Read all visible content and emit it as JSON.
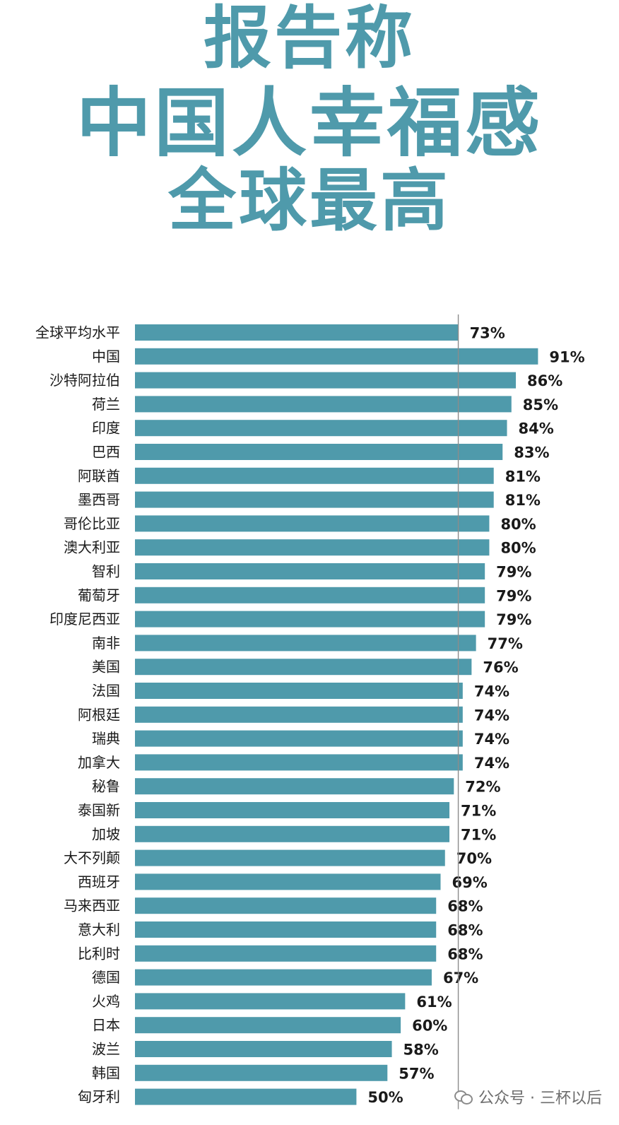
{
  "title_lines": [
    "报告称",
    "中国人幸福感",
    "全球最高"
  ],
  "watermark": "公众号 · 三杯以后",
  "colors": {
    "bar": "#4f9aab",
    "title": "#4f9aab",
    "reference_line": "#8c8c8c"
  },
  "chart_data": {
    "type": "bar",
    "orientation": "horizontal",
    "title": "报告称 中国人幸福感 全球最高",
    "xlabel": "",
    "ylabel": "",
    "value_suffix": "%",
    "reference_value": 73,
    "xlim": [
      0,
      95
    ],
    "grid": false,
    "legend": "none",
    "categories": [
      "全球平均水平",
      "中国",
      "沙特阿拉伯",
      "荷兰",
      "印度",
      "巴西",
      "阿联酋",
      "墨西哥",
      "哥伦比亚",
      "澳大利亚",
      "智利",
      "葡萄牙",
      "印度尼西亚",
      "南非",
      "美国",
      "法国",
      "阿根廷",
      "瑞典",
      "加拿大",
      "秘鲁",
      "泰国新",
      "加坡",
      "大不列颠",
      "西班牙",
      "马来西亚",
      "意大利",
      "比利时",
      "德国",
      "火鸡",
      "日本",
      "波兰",
      "韩国",
      "匈牙利"
    ],
    "values": [
      73,
      91,
      86,
      85,
      84,
      83,
      81,
      81,
      80,
      80,
      79,
      79,
      79,
      77,
      76,
      74,
      74,
      74,
      74,
      72,
      71,
      71,
      70,
      69,
      68,
      68,
      68,
      67,
      61,
      60,
      58,
      57,
      50
    ]
  }
}
